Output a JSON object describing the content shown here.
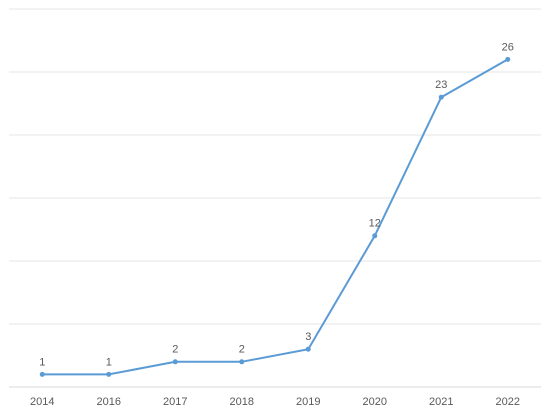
{
  "chart_data": {
    "type": "line",
    "categories": [
      "2014",
      "2016",
      "2017",
      "2018",
      "2019",
      "2020",
      "2021",
      "2022"
    ],
    "series": [
      {
        "color": "#5b9bd5",
        "values": [
          1,
          1,
          2,
          2,
          3,
          12,
          23,
          26
        ]
      }
    ],
    "ylim": [
      0,
      30
    ],
    "yticks": [
      0,
      5,
      10,
      15,
      20,
      25,
      30
    ],
    "grid": true
  }
}
